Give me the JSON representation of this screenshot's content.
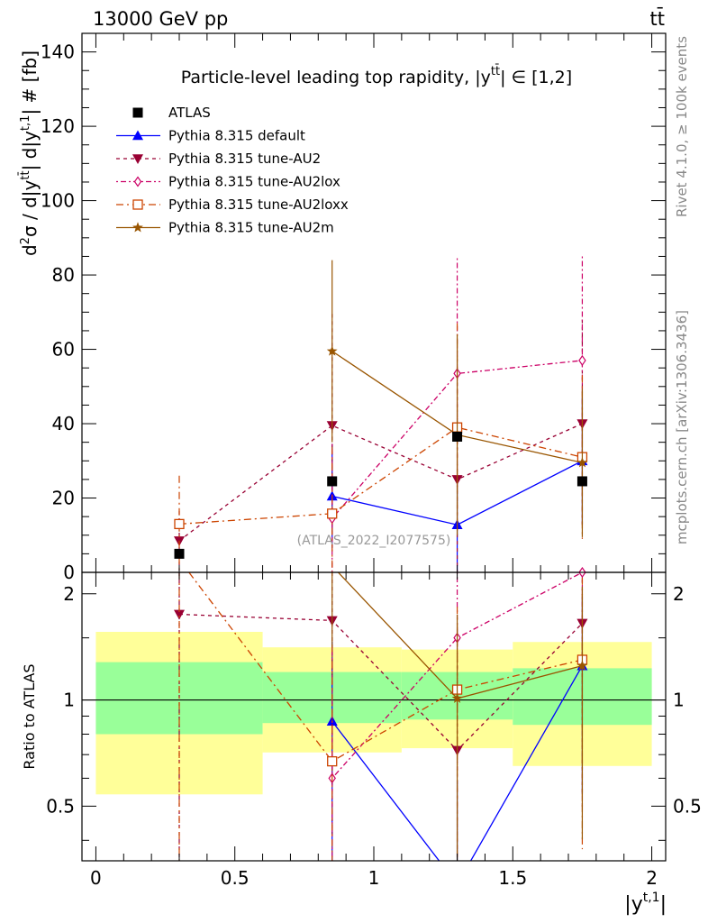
{
  "header": {
    "left": "13000 GeV pp",
    "right": "tt̄"
  },
  "side_labels": {
    "rivet": "Rivet 4.1.0, ≥ 100k events",
    "mcplots": "mcplots.cern.ch [arXiv:1306.3436]"
  },
  "chart_data": {
    "type": "scatter",
    "title": "Particle-level leading top rapidity, |y^tt̄| ∈ [1,2]",
    "watermark": "(ATLAS_2022_I2077575)",
    "xlabel": "|y^t,1|",
    "ylabel": "d²σ / d|y^tt̄| d|y^t,1| # [fb]",
    "ratio_ylabel": "Ratio to ATLAS",
    "xlim": [
      -0.05,
      2.05
    ],
    "ylim": [
      0,
      145
    ],
    "ratio_ylim": [
      0.35,
      2.3
    ],
    "x_ticks": [
      "0",
      "0.5",
      "1",
      "1.5",
      "2"
    ],
    "y_ticks": [
      "0",
      "20",
      "40",
      "60",
      "80",
      "100",
      "120",
      "140"
    ],
    "ratio_ticks": [
      "0.5",
      "1",
      "2"
    ],
    "bins": [
      [
        0,
        0.6
      ],
      [
        0.6,
        1.1
      ],
      [
        1.1,
        1.5
      ],
      [
        1.5,
        2.0
      ]
    ],
    "x": [
      0.3,
      0.85,
      1.3,
      1.75
    ],
    "data": {
      "name": "ATLAS",
      "values": [
        5,
        24.5,
        36.5,
        24.5
      ],
      "band_stat": [
        [
          0.8,
          1.28
        ],
        [
          0.86,
          1.2
        ],
        [
          0.88,
          1.2
        ],
        [
          0.85,
          1.23
        ]
      ],
      "band_total": [
        [
          0.54,
          1.56
        ],
        [
          0.71,
          1.41
        ],
        [
          0.73,
          1.39
        ],
        [
          0.65,
          1.46
        ]
      ]
    },
    "series": [
      {
        "name": "Pythia 8.315 default",
        "color": "#0000ff",
        "dash": "",
        "marker": "triangle-up",
        "values": [
          null,
          20.5,
          12.8,
          30
        ],
        "err": [
          null,
          14,
          12.5,
          17
        ],
        "ratio": [
          null,
          0.87,
          0.3,
          1.25
        ]
      },
      {
        "name": "Pythia 8.315 tune-AU2",
        "color": "#990033",
        "dash": "4,4",
        "marker": "triangle-down",
        "values": [
          8.5,
          39.5,
          25,
          40
        ],
        "err": [
          8,
          30,
          30,
          28
        ],
        "ratio": [
          1.75,
          1.68,
          0.72,
          1.65
        ]
      },
      {
        "name": "Pythia 8.315 tune-AU2lox",
        "color": "#cc0066",
        "dash": "2,3,6,3",
        "marker": "diamond",
        "values": [
          null,
          14.5,
          53.5,
          57
        ],
        "err": [
          null,
          20,
          31,
          28
        ],
        "ratio": [
          null,
          0.6,
          1.5,
          2.3
        ]
      },
      {
        "name": "Pythia 8.315 tune-AU2loxx",
        "color": "#cc4400",
        "dash": "8,4,2,4",
        "marker": "square-open",
        "values": [
          13,
          15.8,
          39,
          31
        ],
        "err": [
          13,
          18,
          28,
          22
        ],
        "ratio": [
          2.5,
          0.67,
          1.07,
          1.3
        ]
      },
      {
        "name": "Pythia 8.315 tune-AU2m",
        "color": "#995500",
        "dash": "",
        "marker": "star",
        "values": [
          null,
          59.5,
          37,
          29.5
        ],
        "err": [
          null,
          24.5,
          27,
          20
        ],
        "ratio": [
          null,
          2.4,
          1.01,
          1.25
        ]
      }
    ]
  }
}
